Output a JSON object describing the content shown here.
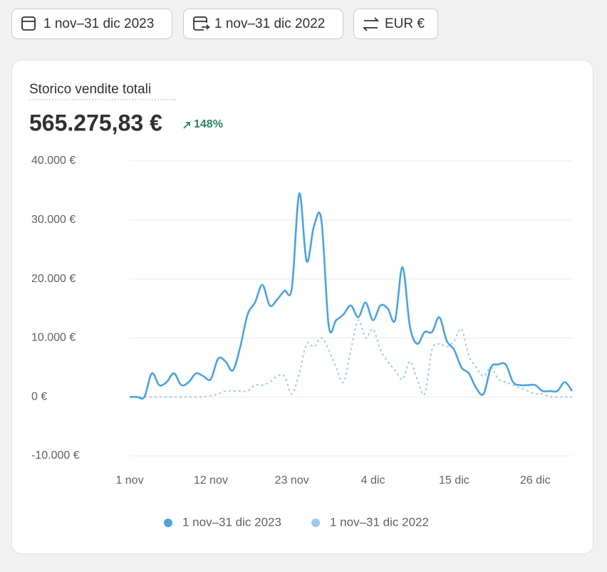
{
  "toolbar": {
    "buttons": [
      "1 nov–31 dic 2023",
      "1 nov–31 dic 2022",
      "EUR €"
    ]
  },
  "chart_data": {
    "type": "line",
    "title": "Storico vendite totali",
    "total": "565.275,83 €",
    "change": "148%",
    "categories": [
      "1 nov",
      null,
      null,
      null,
      null,
      null,
      null,
      null,
      null,
      null,
      null,
      "12 nov",
      null,
      null,
      null,
      null,
      null,
      null,
      null,
      null,
      null,
      null,
      "23 nov",
      null,
      null,
      null,
      null,
      null,
      null,
      null,
      null,
      null,
      null,
      "4 dic",
      null,
      null,
      null,
      null,
      null,
      null,
      null,
      null,
      null,
      null,
      "15 dic",
      null,
      null,
      null,
      null,
      null,
      null,
      null,
      null,
      null,
      null,
      "26 dic",
      null,
      null,
      null,
      null,
      null
    ],
    "series": [
      {
        "name": "1 nov–31 dic 2023",
        "color": "#4ba3e0",
        "dashed": false,
        "values": [
          0,
          0,
          0,
          4000,
          2000,
          2500,
          4000,
          2000,
          2500,
          4000,
          3500,
          3000,
          6500,
          6000,
          4500,
          8500,
          14000,
          16000,
          19000,
          15500,
          16500,
          18000,
          18500,
          34500,
          23000,
          29000,
          30000,
          12000,
          13000,
          14000,
          15500,
          13500,
          16000,
          13000,
          15500,
          15000,
          13000,
          22000,
          12000,
          9000,
          11000,
          11000,
          13500,
          9500,
          8000,
          5000,
          4000,
          1500,
          500,
          5000,
          5500,
          5500,
          2500,
          2000,
          2000,
          2000,
          1000,
          1000,
          1000,
          2500,
          1000
        ]
      },
      {
        "name": "1 nov–31 dic 2022",
        "color": "#9dcbec",
        "dashed": true,
        "values": [
          0,
          0,
          0,
          0,
          0,
          0,
          0,
          0,
          0,
          0,
          0,
          200,
          500,
          1000,
          1000,
          1000,
          1000,
          2000,
          2000,
          2500,
          3500,
          3500,
          500,
          4000,
          9000,
          8500,
          10000,
          8000,
          5000,
          2500,
          8000,
          13000,
          10000,
          11500,
          8000,
          6000,
          4500,
          3000,
          6000,
          3000,
          500,
          8000,
          9000,
          8500,
          9500,
          11500,
          7000,
          5000,
          3500,
          5000,
          3000,
          2500,
          2000,
          1500,
          1000,
          500,
          500,
          0,
          0,
          0,
          0
        ]
      }
    ],
    "ylim": [
      -10000,
      40000
    ],
    "yticks": [
      {
        "value": -10000,
        "label": "-10.000 €"
      },
      {
        "value": 0,
        "label": "0 €"
      },
      {
        "value": 10000,
        "label": "10.000 €"
      },
      {
        "value": 20000,
        "label": "20.000 €"
      },
      {
        "value": 30000,
        "label": "30.000 €"
      },
      {
        "value": 40000,
        "label": "40.000 €"
      }
    ],
    "grid": true
  }
}
